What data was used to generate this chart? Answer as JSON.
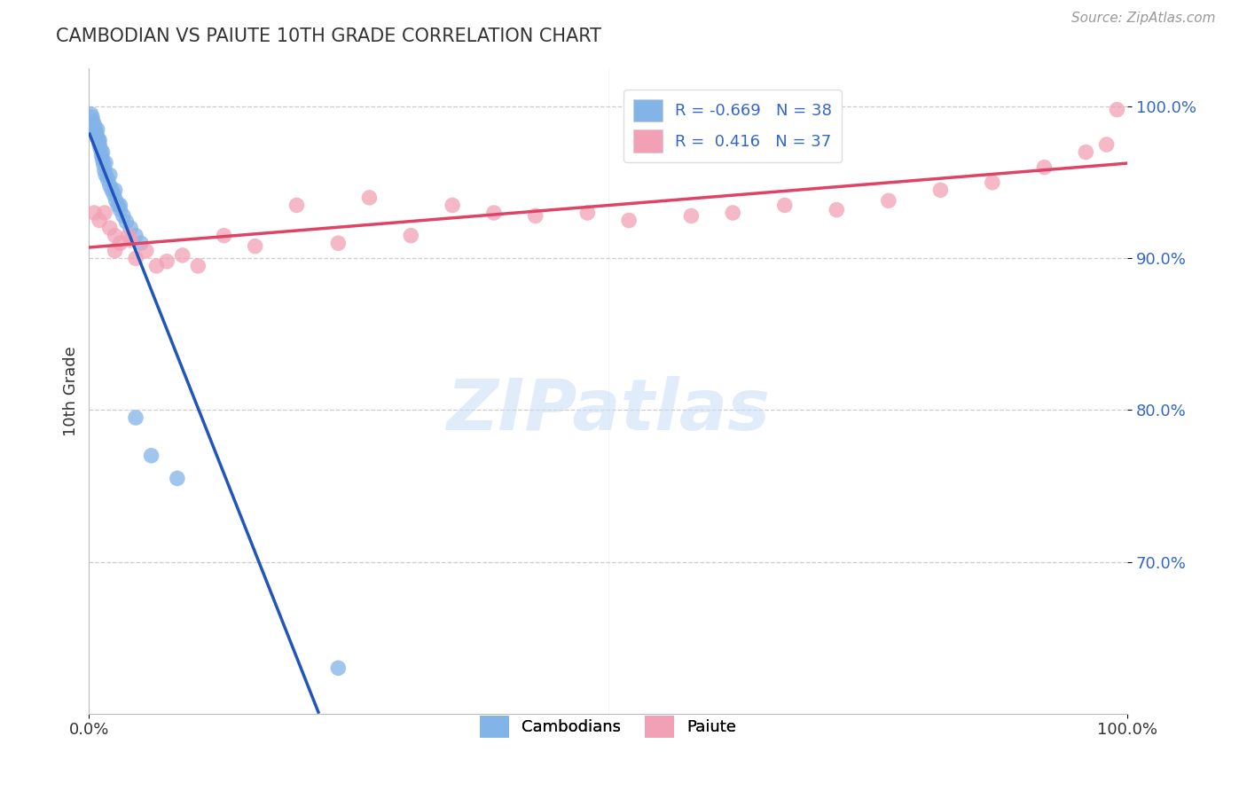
{
  "title": "CAMBODIAN VS PAIUTE 10TH GRADE CORRELATION CHART",
  "source": "Source: ZipAtlas.com",
  "ylabel": "10th Grade",
  "xlim": [
    0.0,
    1.0
  ],
  "ylim": [
    0.6,
    1.025
  ],
  "ytick_values": [
    0.7,
    0.8,
    0.9,
    1.0
  ],
  "ytick_labels": [
    "70.0%",
    "80.0%",
    "90.0%",
    "100.0%"
  ],
  "xtick_values": [
    0.0,
    1.0
  ],
  "xtick_labels": [
    "0.0%",
    "100.0%"
  ],
  "cambodian_R": -0.669,
  "cambodian_N": 38,
  "paiute_R": 0.416,
  "paiute_N": 37,
  "cambodian_color": "#82b4e8",
  "paiute_color": "#f2a0b5",
  "cambodian_line_color": "#2255bb",
  "paiute_line_color": "#dd4466",
  "legend_cambodian_label": "Cambodians",
  "legend_paiute_label": "Paiute",
  "watermark_color": "#cce0f5",
  "background_color": "#ffffff",
  "grid_color": "#cccccc",
  "ytick_color": "#3366cc",
  "cambodian_x": [
    0.002,
    0.003,
    0.004,
    0.005,
    0.006,
    0.007,
    0.008,
    0.009,
    0.01,
    0.011,
    0.012,
    0.013,
    0.014,
    0.015,
    0.016,
    0.018,
    0.02,
    0.022,
    0.024,
    0.026,
    0.028,
    0.03,
    0.033,
    0.036,
    0.04,
    0.045,
    0.05,
    0.008,
    0.01,
    0.013,
    0.016,
    0.02,
    0.025,
    0.03,
    0.045,
    0.06,
    0.085,
    0.24
  ],
  "cambodian_y": [
    0.995,
    0.993,
    0.99,
    0.988,
    0.985,
    0.983,
    0.98,
    0.978,
    0.975,
    0.972,
    0.968,
    0.965,
    0.962,
    0.958,
    0.955,
    0.952,
    0.948,
    0.945,
    0.942,
    0.938,
    0.935,
    0.932,
    0.928,
    0.924,
    0.92,
    0.915,
    0.91,
    0.985,
    0.978,
    0.97,
    0.963,
    0.955,
    0.945,
    0.935,
    0.795,
    0.77,
    0.755,
    0.63
  ],
  "paiute_x": [
    0.005,
    0.01,
    0.015,
    0.02,
    0.025,
    0.03,
    0.038,
    0.045,
    0.055,
    0.065,
    0.075,
    0.09,
    0.105,
    0.13,
    0.16,
    0.2,
    0.24,
    0.27,
    0.31,
    0.35,
    0.39,
    0.43,
    0.48,
    0.52,
    0.58,
    0.62,
    0.67,
    0.72,
    0.77,
    0.82,
    0.87,
    0.92,
    0.96,
    0.98,
    0.99,
    0.025,
    0.04
  ],
  "paiute_y": [
    0.93,
    0.925,
    0.93,
    0.92,
    0.915,
    0.91,
    0.915,
    0.9,
    0.905,
    0.895,
    0.898,
    0.902,
    0.895,
    0.915,
    0.908,
    0.935,
    0.91,
    0.94,
    0.915,
    0.935,
    0.93,
    0.928,
    0.93,
    0.925,
    0.928,
    0.93,
    0.935,
    0.932,
    0.938,
    0.945,
    0.95,
    0.96,
    0.97,
    0.975,
    0.998,
    0.905,
    0.912
  ],
  "cambodian_line_x0": 0.0,
  "cambodian_line_y0": 0.993,
  "cambodian_line_x1": 0.3,
  "cambodian_line_y1": 0.63,
  "paiute_line_x0": 0.0,
  "paiute_line_y0": 0.92,
  "paiute_line_x1": 1.0,
  "paiute_line_y1": 0.998
}
